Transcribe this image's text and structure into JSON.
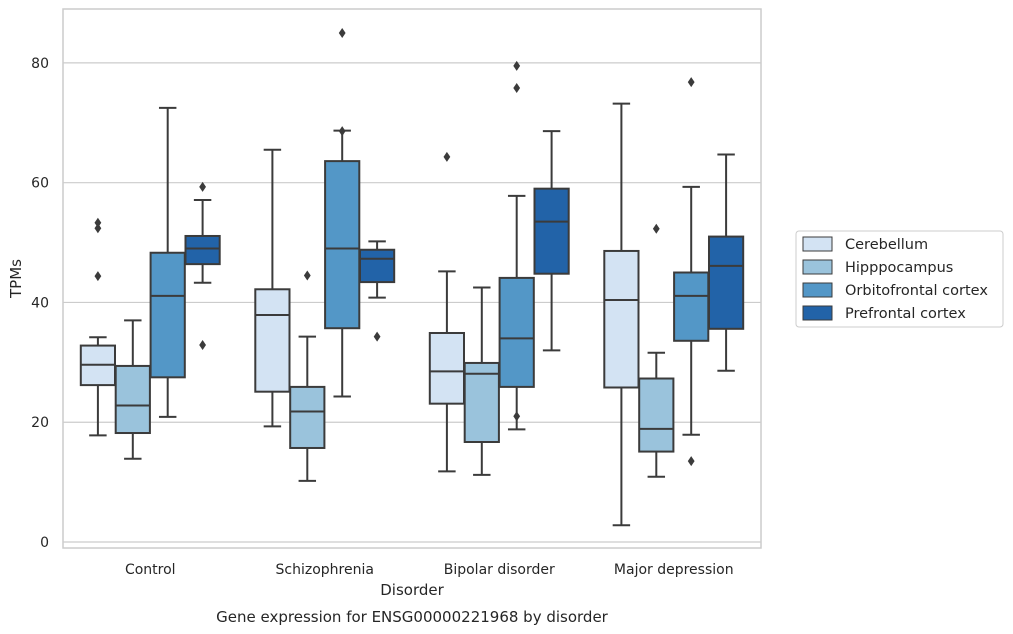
{
  "chart_data": {
    "type": "box",
    "xlabel": "Disorder",
    "ylabel": "TPMs",
    "caption": "Gene expression for ENSG00000221968 by disorder",
    "ylim": [
      -1,
      89
    ],
    "yticks": [
      0,
      20,
      40,
      60,
      80
    ],
    "grid": "horizontal",
    "legend_position": "right",
    "categories": [
      "Control",
      "Schizophrenia",
      "Bipolar disorder",
      "Major depression"
    ],
    "series": [
      {
        "name": "Cerebellum",
        "color": "#d3e3f3",
        "boxes": [
          {
            "whislo": 17.8,
            "q1": 26.2,
            "med": 29.6,
            "q3": 32.8,
            "whishi": 34.2,
            "fliers": [
              44.4,
              52.4,
              53.3
            ]
          },
          {
            "whislo": 19.3,
            "q1": 25.1,
            "med": 37.9,
            "q3": 42.2,
            "whishi": 65.5,
            "fliers": []
          },
          {
            "whislo": 11.8,
            "q1": 23.1,
            "med": 28.5,
            "q3": 34.9,
            "whishi": 45.2,
            "fliers": [
              64.3
            ]
          },
          {
            "whislo": 2.8,
            "q1": 25.8,
            "med": 40.4,
            "q3": 48.6,
            "whishi": 73.2,
            "fliers": []
          }
        ]
      },
      {
        "name": "Hipppocampus",
        "color": "#9ac3dc",
        "boxes": [
          {
            "whislo": 13.9,
            "q1": 18.2,
            "med": 22.8,
            "q3": 29.4,
            "whishi": 37.0,
            "fliers": []
          },
          {
            "whislo": 10.2,
            "q1": 15.7,
            "med": 21.8,
            "q3": 25.9,
            "whishi": 34.3,
            "fliers": [
              44.5
            ]
          },
          {
            "whislo": 11.2,
            "q1": 16.7,
            "med": 28.1,
            "q3": 29.9,
            "whishi": 42.5,
            "fliers": []
          },
          {
            "whislo": 10.9,
            "q1": 15.1,
            "med": 18.9,
            "q3": 27.3,
            "whishi": 31.6,
            "fliers": [
              52.3
            ]
          }
        ]
      },
      {
        "name": "Orbitofrontal cortex",
        "color": "#5397c7",
        "boxes": [
          {
            "whislo": 20.9,
            "q1": 27.5,
            "med": 41.1,
            "q3": 48.3,
            "whishi": 72.5,
            "fliers": []
          },
          {
            "whislo": 24.3,
            "q1": 35.7,
            "med": 49.0,
            "q3": 63.6,
            "whishi": 68.7,
            "fliers": [
              85.0,
              68.6
            ]
          },
          {
            "whislo": 18.8,
            "q1": 25.9,
            "med": 34.0,
            "q3": 44.1,
            "whishi": 57.8,
            "fliers": [
              21.0,
              75.8,
              79.5
            ]
          },
          {
            "whislo": 17.9,
            "q1": 33.6,
            "med": 41.1,
            "q3": 45.0,
            "whishi": 59.3,
            "fliers": [
              13.5,
              76.8
            ]
          }
        ]
      },
      {
        "name": "Prefrontal cortex",
        "color": "#2263a8",
        "boxes": [
          {
            "whislo": 43.3,
            "q1": 46.4,
            "med": 49.0,
            "q3": 51.1,
            "whishi": 57.1,
            "fliers": [
              32.9,
              59.3
            ]
          },
          {
            "whislo": 40.8,
            "q1": 43.4,
            "med": 47.3,
            "q3": 48.8,
            "whishi": 50.2,
            "fliers": [
              34.3
            ]
          },
          {
            "whislo": 32.0,
            "q1": 44.8,
            "med": 53.5,
            "q3": 59.0,
            "whishi": 68.6,
            "fliers": []
          },
          {
            "whislo": 28.6,
            "q1": 35.6,
            "med": 46.1,
            "q3": 51.0,
            "whishi": 64.7,
            "fliers": []
          }
        ]
      }
    ]
  }
}
